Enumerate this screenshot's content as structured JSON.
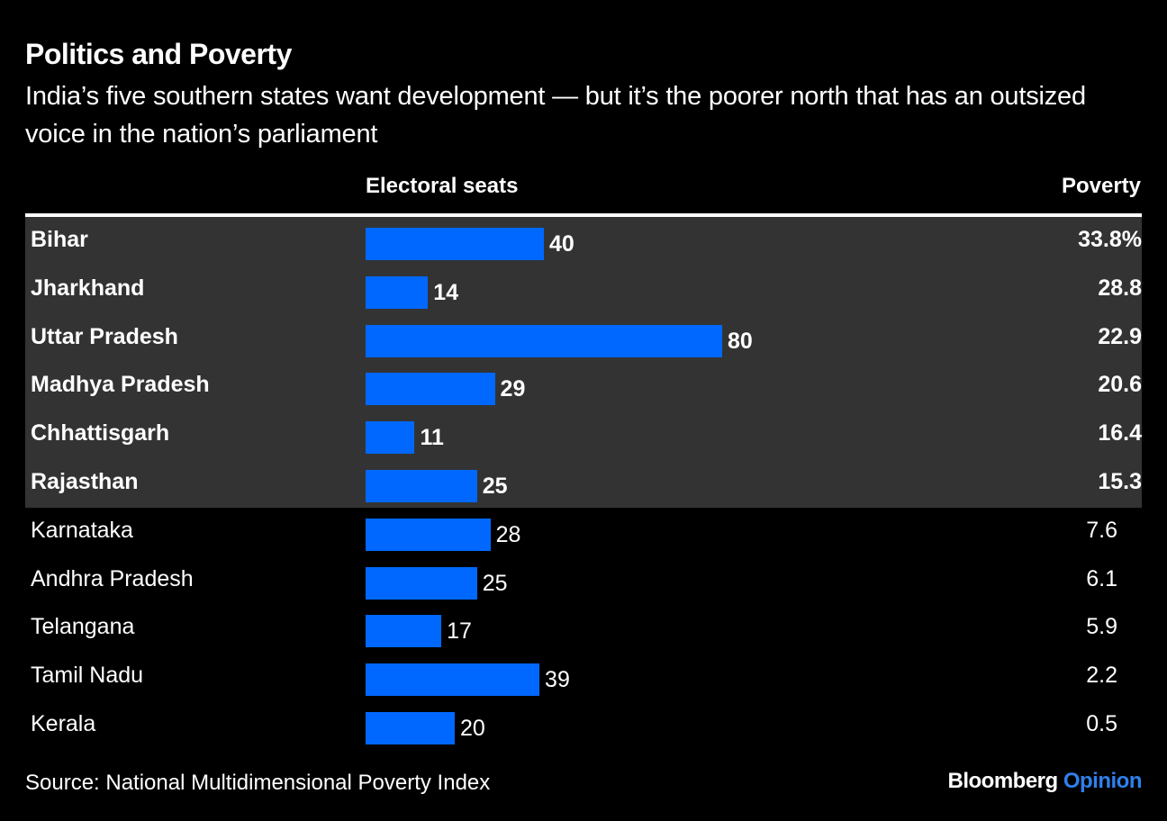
{
  "header": {
    "title": "Politics and Poverty",
    "subtitle": "India’s five southern states want development — but it’s the poorer north that has an outsized voice in the nation’s parliament"
  },
  "chart_data": {
    "type": "bar",
    "orientation": "horizontal",
    "title": "Politics and Poverty",
    "subtitle": "India’s five southern states want development — but it’s the poorer north that has an outsized voice in the nation’s parliament",
    "columns": {
      "seats": "Electoral seats",
      "poverty": "Poverty"
    },
    "xlim": [
      0,
      80
    ],
    "bar_color": "#0068ff",
    "highlight_color": "#333333",
    "rows": [
      {
        "state": "Bihar",
        "seats": 40,
        "seats_label": "40",
        "poverty": 33.8,
        "poverty_label": "33.8%",
        "group": "north"
      },
      {
        "state": "Jharkhand",
        "seats": 14,
        "seats_label": "14",
        "poverty": 28.8,
        "poverty_label": "28.8",
        "group": "north"
      },
      {
        "state": "Uttar Pradesh",
        "seats": 80,
        "seats_label": "80",
        "poverty": 22.9,
        "poverty_label": "22.9",
        "group": "north"
      },
      {
        "state": "Madhya Pradesh",
        "seats": 29,
        "seats_label": "29",
        "poverty": 20.6,
        "poverty_label": "20.6",
        "group": "north"
      },
      {
        "state": "Chhattisgarh",
        "seats": 11,
        "seats_label": "11",
        "poverty": 16.4,
        "poverty_label": "16.4",
        "group": "north"
      },
      {
        "state": "Rajasthan",
        "seats": 25,
        "seats_label": "25",
        "poverty": 15.3,
        "poverty_label": "15.3",
        "group": "north"
      },
      {
        "state": "Karnataka",
        "seats": 28,
        "seats_label": "28",
        "poverty": 7.6,
        "poverty_label": "7.6",
        "group": "south"
      },
      {
        "state": "Andhra Pradesh",
        "seats": 25,
        "seats_label": "25",
        "poverty": 6.1,
        "poverty_label": "6.1",
        "group": "south"
      },
      {
        "state": "Telangana",
        "seats": 17,
        "seats_label": "17",
        "poverty": 5.9,
        "poverty_label": "5.9",
        "group": "south"
      },
      {
        "state": "Tamil Nadu",
        "seats": 39,
        "seats_label": "39",
        "poverty": 2.2,
        "poverty_label": "2.2",
        "group": "south"
      },
      {
        "state": "Kerala",
        "seats": 20,
        "seats_label": "20",
        "poverty": 0.5,
        "poverty_label": "0.5",
        "group": "south"
      }
    ]
  },
  "footer": {
    "source": "Source: National Multidimensional Poverty Index",
    "brand_main": "Bloomberg",
    "brand_accent": "Opinion"
  }
}
